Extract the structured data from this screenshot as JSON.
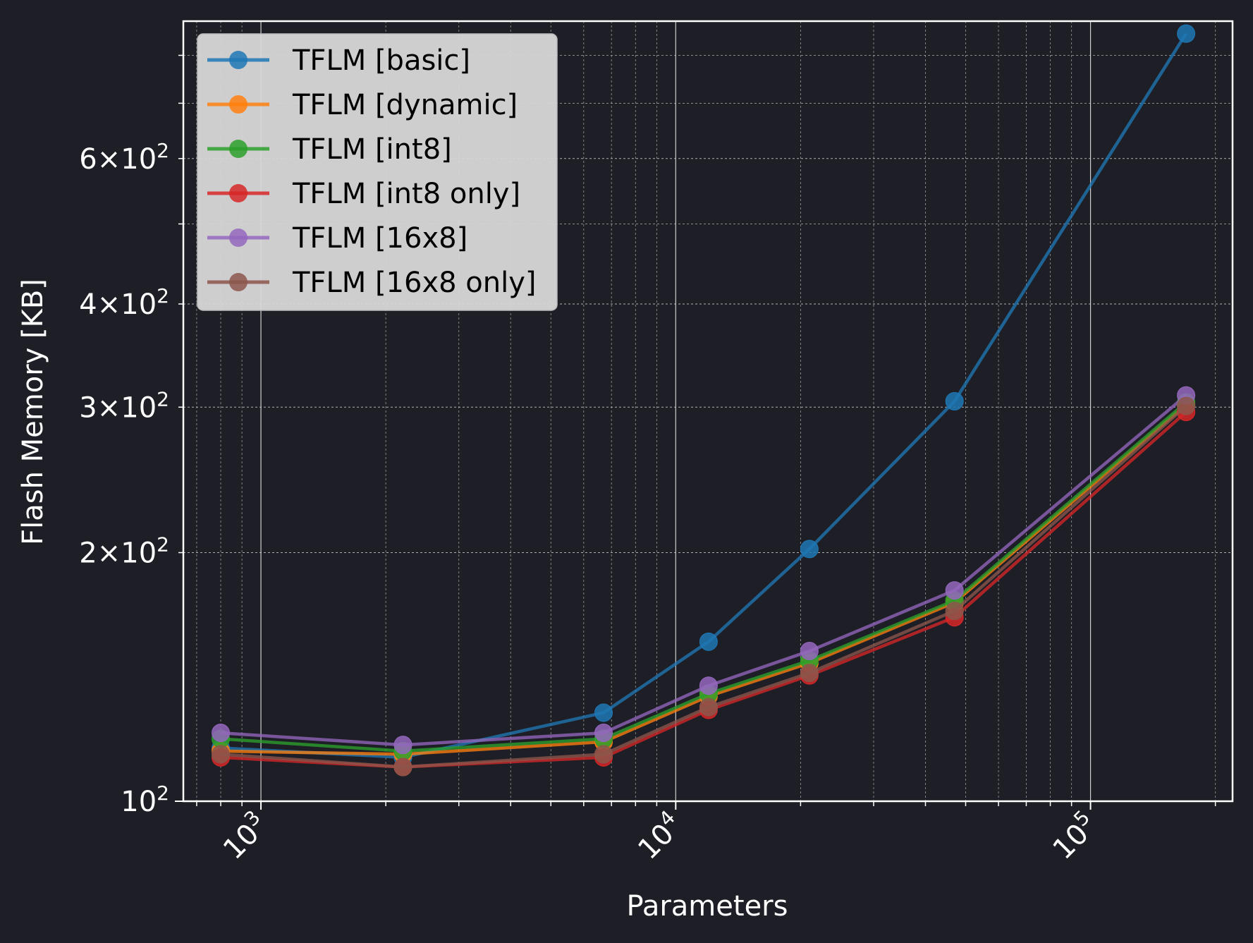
{
  "chart_data": {
    "type": "line",
    "xlabel": "Parameters",
    "ylabel": "Flash Memory [KB]",
    "xscale": "log",
    "yscale": "log",
    "xlim": [
      650,
      220000
    ],
    "ylim": [
      100,
      880
    ],
    "grid": true,
    "legend_position": "top-left",
    "x_tick_labels": [
      "10^3",
      "10^4",
      "10^5"
    ],
    "y_tick_labels": [
      "10^2",
      "2×10^2",
      "3×10^2",
      "4×10^2",
      "6×10^2"
    ],
    "x": [
      800,
      2200,
      6700,
      12000,
      21000,
      47000,
      170000
    ],
    "series": [
      {
        "name": "TFLM [basic]",
        "color": "#1f77b4",
        "values": [
          116,
          113,
          128,
          156,
          202,
          305,
          850
        ]
      },
      {
        "name": "TFLM [dynamic]",
        "color": "#ff7f0e",
        "values": [
          115,
          114,
          118,
          134,
          147,
          174,
          302
        ]
      },
      {
        "name": "TFLM [int8]",
        "color": "#2ca02c",
        "values": [
          119,
          115,
          119,
          135,
          148,
          175,
          304
        ]
      },
      {
        "name": "TFLM [int8 only]",
        "color": "#d62728",
        "values": [
          113,
          110,
          113,
          129,
          142,
          167,
          296
        ]
      },
      {
        "name": "TFLM [16x8]",
        "color": "#9467bd",
        "values": [
          121,
          117,
          121,
          138,
          152,
          180,
          310
        ]
      },
      {
        "name": "TFLM [16x8 only]",
        "color": "#8c564b",
        "values": [
          114,
          110,
          114,
          130,
          143,
          170,
          301
        ]
      }
    ]
  }
}
